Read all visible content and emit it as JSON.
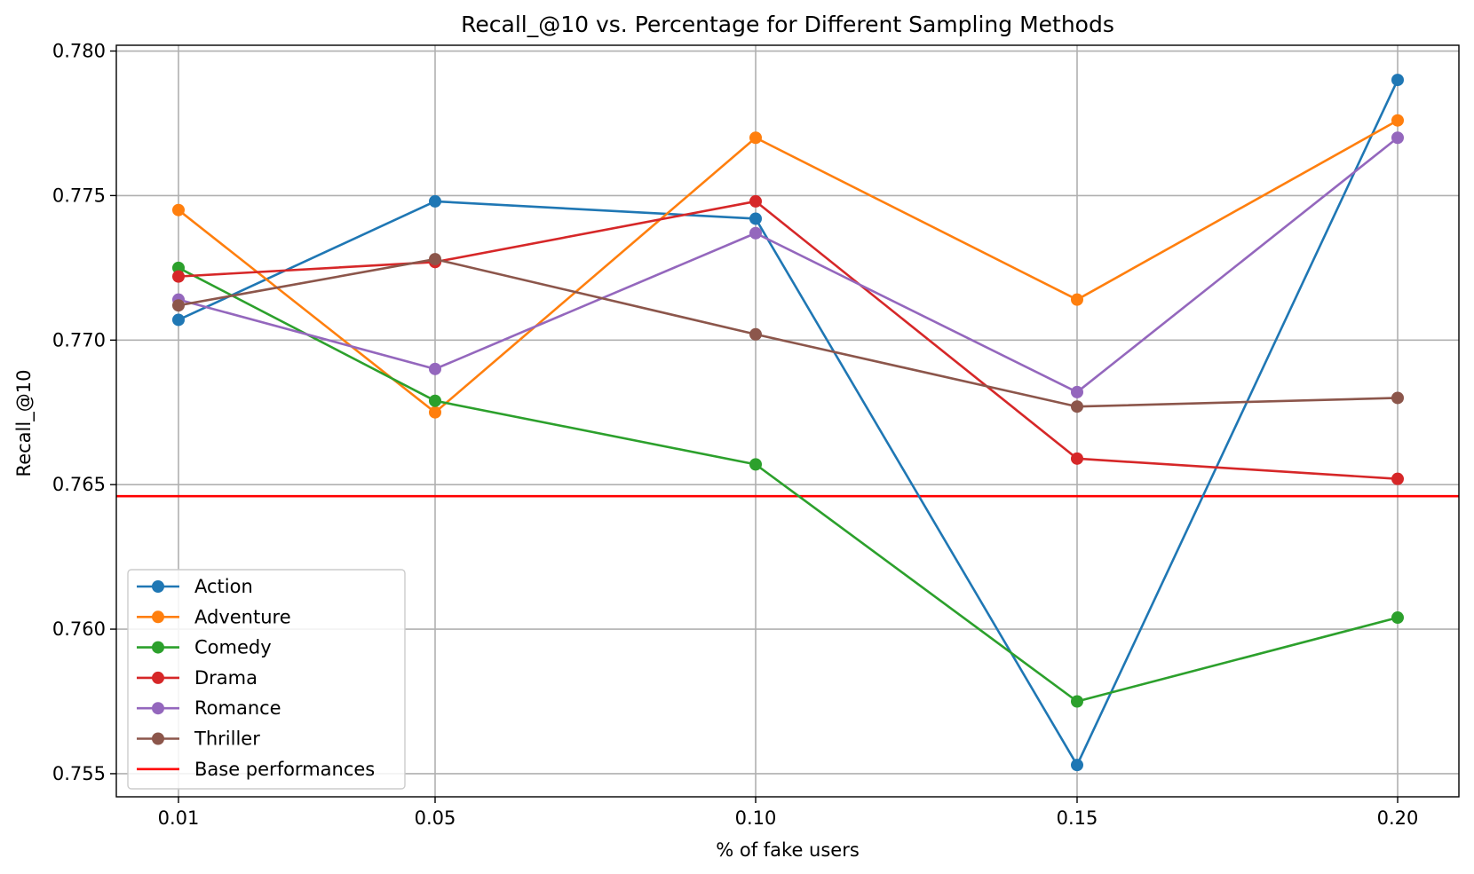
{
  "chart_data": {
    "type": "line",
    "title": "Recall_@10 vs. Percentage for Different Sampling Methods",
    "xlabel": "% of fake users",
    "ylabel": "Recall_@10",
    "categories": [
      "0.01",
      "0.05",
      "0.10",
      "0.15",
      "0.20"
    ],
    "ylim": [
      0.7542,
      0.7802
    ],
    "yticks": [
      "0.755",
      "0.760",
      "0.765",
      "0.770",
      "0.775",
      "0.780"
    ],
    "grid": true,
    "legend_position": "lower-left",
    "series": [
      {
        "name": "Action",
        "color": "#1f77b4",
        "marker": "circle",
        "values": [
          0.7707,
          0.7748,
          0.7742,
          0.7553,
          0.779
        ]
      },
      {
        "name": "Adventure",
        "color": "#ff7f0e",
        "marker": "circle",
        "values": [
          0.7745,
          0.7675,
          0.777,
          0.7714,
          0.7776
        ]
      },
      {
        "name": "Comedy",
        "color": "#2ca02c",
        "marker": "circle",
        "values": [
          0.7725,
          0.7679,
          0.7657,
          0.7575,
          0.7604
        ]
      },
      {
        "name": "Drama",
        "color": "#d62728",
        "marker": "circle",
        "values": [
          0.7722,
          0.7727,
          0.7748,
          0.7659,
          0.7652
        ]
      },
      {
        "name": "Romance",
        "color": "#9467bd",
        "marker": "circle",
        "values": [
          0.7714,
          0.769,
          0.7737,
          0.7682,
          0.777
        ]
      },
      {
        "name": "Thriller",
        "color": "#8c564b",
        "marker": "circle",
        "values": [
          0.7712,
          0.7728,
          0.7702,
          0.7677,
          0.768
        ]
      }
    ],
    "reference_lines": [
      {
        "name": "Base performances",
        "color": "#ff0000",
        "value": 0.7646
      }
    ]
  }
}
